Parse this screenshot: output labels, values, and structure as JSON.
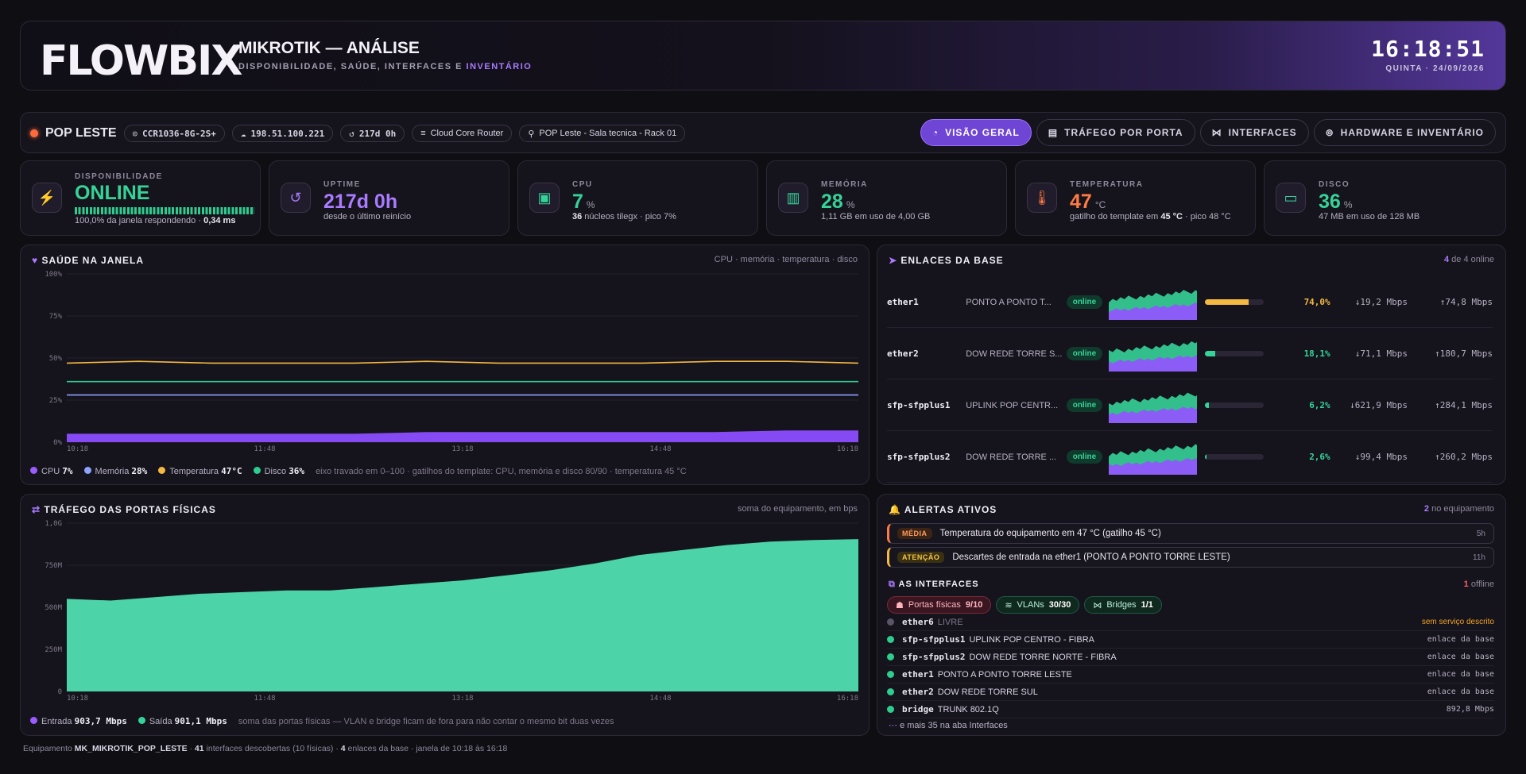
{
  "header": {
    "logo": "FLOWBIX",
    "title": "MIKROTIK — ANÁLISE",
    "subtitle_prefix": "DISPONIBILIDADE, SAÚDE, INTERFACES E ",
    "subtitle_highlight": "INVENTÁRIO",
    "clock": "16:18:51",
    "date": "QUINTA · 24/09/2026"
  },
  "device": {
    "name": "POP LESTE",
    "model": "CCR1036-8G-2S+",
    "ip": "198.51.100.221",
    "uptime_short": "217d 0h",
    "type": "Cloud Core Router",
    "location": "POP Leste - Sala tecnica - Rack 01"
  },
  "tabs": [
    {
      "label": "VISÃO GERAL",
      "icon": "gauge-icon"
    },
    {
      "label": "TRÁFEGO POR PORTA",
      "icon": "chart-icon"
    },
    {
      "label": "INTERFACES",
      "icon": "network-icon"
    },
    {
      "label": "HARDWARE E INVENTÁRIO",
      "icon": "chip-icon"
    }
  ],
  "kpis": {
    "availability": {
      "label": "DISPONIBILIDADE",
      "value": "ONLINE",
      "sub_a": "100,0% da janela respondendo · ",
      "sub_b": "0,34 ms",
      "color": "#36d399"
    },
    "uptime": {
      "label": "UPTIME",
      "value": "217d 0h",
      "sub": "desde o último reinício",
      "color": "#a97bff"
    },
    "cpu": {
      "label": "CPU",
      "value": "7",
      "unit": "%",
      "sub_a": "36",
      "sub_b": " núcleos tilegx · pico 7%",
      "color": "#36d399"
    },
    "memory": {
      "label": "MEMÓRIA",
      "value": "28",
      "unit": "%",
      "sub": "1,11 GB em uso de 4,00 GB",
      "color": "#36d399"
    },
    "temperature": {
      "label": "TEMPERATURA",
      "value": "47",
      "unit": "°C",
      "sub_a": "gatilho do template em ",
      "sub_b": "45 °C",
      "sub_c": " · pico 48 °C",
      "color": "#ff7a45"
    },
    "disk": {
      "label": "DISCO",
      "value": "36",
      "unit": "%",
      "sub": "47 MB em uso de 128 MB",
      "color": "#36d399"
    }
  },
  "health": {
    "title": "SAÚDE NA JANELA",
    "note": "CPU · memória · temperatura · disco",
    "footnote": "eixo travado em 0–100 · gatilhos do template: CPU, memória e disco 80/90 · temperatura 45 °C",
    "legend": [
      {
        "name": "CPU",
        "value": "7%",
        "color": "#9b5cff"
      },
      {
        "name": "Memória",
        "value": "28%",
        "color": "#8ea2ff"
      },
      {
        "name": "Temperatura",
        "value": "47°C",
        "color": "#f5b942"
      },
      {
        "name": "Disco",
        "value": "36%",
        "color": "#2ecc8f"
      }
    ]
  },
  "links": {
    "title": "ENLACES DA BASE",
    "count_a": "4",
    "count_b": " de 4 online",
    "status": "online",
    "rows": [
      {
        "name": "ether1",
        "desc": "PONTO A PONTO T...",
        "pct": "74,0%",
        "fill": 0.74,
        "color": "#f5b942",
        "down": "↓19,2 Mbps",
        "up": "↑74,8 Mbps"
      },
      {
        "name": "ether2",
        "desc": "DOW REDE TORRE S...",
        "pct": "18,1%",
        "fill": 0.181,
        "color": "#36d399",
        "down": "↓71,1 Mbps",
        "up": "↑180,7 Mbps"
      },
      {
        "name": "sfp-sfpplus1",
        "desc": "UPLINK POP CENTR...",
        "pct": "6,2%",
        "fill": 0.062,
        "color": "#36d399",
        "down": "↓621,9 Mbps",
        "up": "↑284,1 Mbps"
      },
      {
        "name": "sfp-sfpplus2",
        "desc": "DOW REDE TORRE ...",
        "pct": "2,6%",
        "fill": 0.026,
        "color": "#36d399",
        "down": "↓99,4 Mbps",
        "up": "↑260,2 Mbps"
      }
    ]
  },
  "traffic": {
    "title": "TRÁFEGO DAS PORTAS FÍSICAS",
    "note": "soma do equipamento, em bps",
    "footnote": "soma das portas físicas — VLAN e bridge ficam de fora para não contar o mesmo bit duas vezes",
    "legend": [
      {
        "name": "Entrada",
        "value": "903,7 Mbps",
        "color": "#9b5cff"
      },
      {
        "name": "Saída",
        "value": "901,1 Mbps",
        "color": "#36d399"
      }
    ]
  },
  "alerts": {
    "title": "ALERTAS ATIVOS",
    "count_a": "2",
    "count_b": " no equipamento",
    "items": [
      {
        "sev": "MÉDIA",
        "text": "Temperatura do equipamento em 47 °C (gatilho 45 °C)",
        "age": "5h",
        "sev_color": "#ff9b5e",
        "sev_bg": "#3b2416",
        "border": "#ff7a45"
      },
      {
        "sev": "ATENÇÃO",
        "text": "Descartes de entrada na ether1 (PONTO A PONTO TORRE LESTE)",
        "age": "11h",
        "sev_color": "#f5c542",
        "sev_bg": "#3a3014",
        "border": "#f5b942"
      }
    ]
  },
  "interfaces": {
    "title": "AS INTERFACES",
    "offline_a": "1",
    "offline_b": " offline",
    "chips": [
      {
        "label": "Portas físicas",
        "value": "9/10"
      },
      {
        "label": "VLANs",
        "value": "30/30"
      },
      {
        "label": "Bridges",
        "value": "1/1"
      }
    ],
    "rows": [
      {
        "name": "ether6",
        "desc": "LIVRE",
        "right": "sem serviço descrito",
        "status": "off"
      },
      {
        "name": "sfp-sfpplus1",
        "desc": "UPLINK POP CENTRO - FIBRA",
        "right": "enlace da base",
        "status": "on"
      },
      {
        "name": "sfp-sfpplus2",
        "desc": "DOW REDE TORRE NORTE - FIBRA",
        "right": "enlace da base",
        "status": "on"
      },
      {
        "name": "ether1",
        "desc": "PONTO A PONTO TORRE LESTE",
        "right": "enlace da base",
        "status": "on"
      },
      {
        "name": "ether2",
        "desc": "DOW REDE TORRE SUL",
        "right": "enlace da base",
        "status": "on"
      },
      {
        "name": "bridge",
        "desc": "TRUNK 802.1Q",
        "right": "892,8 Mbps",
        "status": "on"
      }
    ],
    "more": "e mais 35 na aba Interfaces"
  },
  "footer": {
    "a": "Equipamento ",
    "b": "MK_MIKROTIK_POP_LESTE",
    "c": " · ",
    "d": "41",
    "e": " interfaces descobertas (10 físicas) · ",
    "f": "4",
    "g": " enlaces da base · janela de 10:18 às 16:18"
  },
  "chart_data": [
    {
      "type": "line",
      "title": "SAÚDE NA JANELA",
      "ylim": [
        0,
        100
      ],
      "yticks": [
        "0%",
        "25%",
        "50%",
        "75%",
        "100%"
      ],
      "x_labels": [
        "10:18",
        "11:48",
        "13:18",
        "14:48",
        "16:18"
      ],
      "series": [
        {
          "name": "CPU",
          "values": [
            5,
            5,
            5,
            5,
            5,
            6,
            6,
            6,
            6,
            6,
            7,
            7
          ]
        },
        {
          "name": "Memória",
          "values": [
            28,
            28,
            28,
            28,
            28,
            28,
            28,
            28,
            28,
            28,
            28,
            28
          ]
        },
        {
          "name": "Temperatura",
          "values": [
            47,
            48,
            47,
            47,
            47,
            48,
            47,
            47,
            47,
            48,
            48,
            47
          ]
        },
        {
          "name": "Disco",
          "values": [
            36,
            36,
            36,
            36,
            36,
            36,
            36,
            36,
            36,
            36,
            36,
            36
          ]
        }
      ]
    },
    {
      "type": "area",
      "title": "TRÁFEGO DAS PORTAS FÍSICAS",
      "ylim": [
        0,
        1000
      ],
      "yticks": [
        "0",
        "250M",
        "500M",
        "750M",
        "1,0G"
      ],
      "x_labels": [
        "10:18",
        "11:48",
        "13:18",
        "14:48",
        "16:18"
      ],
      "series": [
        {
          "name": "Saída",
          "values": [
            550,
            540,
            560,
            580,
            590,
            600,
            600,
            620,
            640,
            660,
            690,
            720,
            760,
            810,
            840,
            870,
            890,
            900,
            905
          ]
        }
      ]
    }
  ]
}
